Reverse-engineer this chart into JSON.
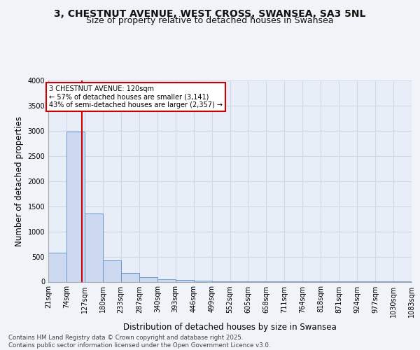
{
  "title_line1": "3, CHESTNUT AVENUE, WEST CROSS, SWANSEA, SA3 5NL",
  "title_line2": "Size of property relative to detached houses in Swansea",
  "xlabel": "Distribution of detached houses by size in Swansea",
  "ylabel": "Number of detached properties",
  "bin_edges": [
    21,
    74,
    127,
    180,
    233,
    287,
    340,
    393,
    446,
    499,
    552,
    605,
    658,
    711,
    764,
    818,
    871,
    924,
    977,
    1030,
    1083
  ],
  "bar_heights": [
    580,
    2980,
    1350,
    430,
    170,
    90,
    55,
    30,
    20,
    12,
    8,
    5,
    4,
    3,
    2,
    2,
    1,
    1,
    1,
    1
  ],
  "bar_facecolor": "#ccd9f0",
  "bar_edgecolor": "#6699cc",
  "bg_color": "#e8eef8",
  "grid_color": "#d0d8e8",
  "vline_x": 120,
  "vline_color": "#cc0000",
  "annotation_text": "3 CHESTNUT AVENUE: 120sqm\n← 57% of detached houses are smaller (3,141)\n43% of semi-detached houses are larger (2,357) →",
  "annotation_box_color": "#cc0000",
  "annotation_bg": "#ffffff",
  "ylim": [
    0,
    4000
  ],
  "yticks": [
    0,
    500,
    1000,
    1500,
    2000,
    2500,
    3000,
    3500,
    4000
  ],
  "footnote": "Contains HM Land Registry data © Crown copyright and database right 2025.\nContains public sector information licensed under the Open Government Licence v3.0.",
  "title_fontsize": 10,
  "subtitle_fontsize": 9,
  "tick_fontsize": 7,
  "label_fontsize": 8.5,
  "fig_bg": "#f0f4f8"
}
